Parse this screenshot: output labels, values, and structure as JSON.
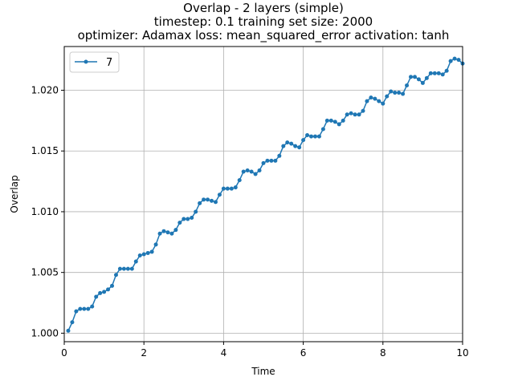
{
  "colors": {
    "series": "#1f77b4",
    "grid": "#b0b0b0",
    "axes": "#000000",
    "legend_border": "#cccccc"
  },
  "chart_data": {
    "type": "line",
    "title_lines": [
      "Overlap - 2 layers (simple)",
      "timestep: 0.1 training set size: 2000",
      "optimizer: Adamax loss: mean_squared_error activation: tanh"
    ],
    "xlabel": "Time",
    "ylabel": "Overlap",
    "xlim": [
      0,
      10
    ],
    "ylim": [
      0.9993,
      1.0236
    ],
    "x_ticks": [
      0,
      2,
      4,
      6,
      8,
      10
    ],
    "x_tick_labels": [
      "0",
      "2",
      "4",
      "6",
      "8",
      "10"
    ],
    "y_ticks": [
      1.0,
      1.005,
      1.01,
      1.015,
      1.02
    ],
    "y_tick_labels": [
      "1.000",
      "1.005",
      "1.010",
      "1.015",
      "1.020"
    ],
    "grid": true,
    "legend_position": "upper-left",
    "series": [
      {
        "name": "7",
        "marker": "circle",
        "x": [
          0.1,
          0.2,
          0.3,
          0.4,
          0.5,
          0.6,
          0.7,
          0.8,
          0.9,
          1.0,
          1.1,
          1.2,
          1.3,
          1.4,
          1.5,
          1.6,
          1.7,
          1.8,
          1.9,
          2.0,
          2.1,
          2.2,
          2.3,
          2.4,
          2.5,
          2.6,
          2.7,
          2.8,
          2.9,
          3.0,
          3.1,
          3.2,
          3.3,
          3.4,
          3.5,
          3.6,
          3.7,
          3.8,
          3.9,
          4.0,
          4.1,
          4.2,
          4.3,
          4.4,
          4.5,
          4.6,
          4.7,
          4.8,
          4.9,
          5.0,
          5.1,
          5.2,
          5.3,
          5.4,
          5.5,
          5.6,
          5.7,
          5.8,
          5.9,
          6.0,
          6.1,
          6.2,
          6.3,
          6.4,
          6.5,
          6.6,
          6.7,
          6.8,
          6.9,
          7.0,
          7.1,
          7.2,
          7.3,
          7.4,
          7.5,
          7.6,
          7.7,
          7.8,
          7.9,
          8.0,
          8.1,
          8.2,
          8.3,
          8.4,
          8.5,
          8.6,
          8.7,
          8.8,
          8.9,
          9.0,
          9.1,
          9.2,
          9.3,
          9.4,
          9.5,
          9.6,
          9.7,
          9.8,
          9.9,
          10.0
        ],
        "y": [
          1.0002,
          1.0009,
          1.0018,
          1.002,
          1.002,
          1.002,
          1.0022,
          1.003,
          1.0033,
          1.0034,
          1.0036,
          1.0039,
          1.0048,
          1.0053,
          1.0053,
          1.0053,
          1.0053,
          1.0059,
          1.0064,
          1.0065,
          1.0066,
          1.0067,
          1.0073,
          1.0082,
          1.0084,
          1.0083,
          1.0082,
          1.0085,
          1.0091,
          1.0094,
          1.0094,
          1.0095,
          1.01,
          1.0107,
          1.011,
          1.011,
          1.0109,
          1.0108,
          1.0114,
          1.0119,
          1.0119,
          1.0119,
          1.012,
          1.0126,
          1.0133,
          1.0134,
          1.0133,
          1.0131,
          1.0134,
          1.014,
          1.0142,
          1.0142,
          1.0142,
          1.0146,
          1.0154,
          1.0157,
          1.0156,
          1.0154,
          1.0153,
          1.0159,
          1.0163,
          1.0162,
          1.0162,
          1.0162,
          1.0168,
          1.0175,
          1.0175,
          1.0174,
          1.0172,
          1.0175,
          1.018,
          1.0181,
          1.018,
          1.018,
          1.0183,
          1.0191,
          1.0194,
          1.0193,
          1.0191,
          1.0189,
          1.0195,
          1.0199,
          1.0198,
          1.0198,
          1.0197,
          1.0204,
          1.0211,
          1.0211,
          1.0209,
          1.0206,
          1.021,
          1.0214,
          1.0214,
          1.0214,
          1.0213,
          1.0216,
          1.0224,
          1.0226,
          1.0225,
          1.0222
        ]
      }
    ]
  }
}
